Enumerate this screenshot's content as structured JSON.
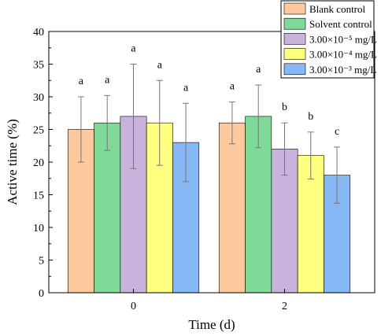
{
  "chart_data": {
    "type": "bar",
    "xlabel": "Time (d)",
    "ylabel": "Active time (%)",
    "ylim": [
      0,
      40
    ],
    "yticks": [
      0,
      5,
      10,
      15,
      20,
      25,
      30,
      35,
      40
    ],
    "categories": [
      "0",
      "2"
    ],
    "legend_position": "top-right",
    "series": [
      {
        "name": "Blank control",
        "values": [
          25,
          26
        ],
        "errors": [
          5.0,
          3.2
        ],
        "labels": [
          "a",
          "a"
        ],
        "color": "#FFC89E"
      },
      {
        "name": "Solvent control",
        "values": [
          26,
          27
        ],
        "errors": [
          4.2,
          4.8
        ],
        "labels": [
          "a",
          "a"
        ],
        "color": "#7FDA9A"
      },
      {
        "name": "3.00×10⁻⁵ mg/L",
        "values": [
          27,
          22
        ],
        "errors": [
          8.0,
          4.0
        ],
        "labels": [
          "a",
          "b"
        ],
        "color": "#C9B3DC"
      },
      {
        "name": "3.00×10⁻⁴ mg/L",
        "values": [
          26,
          21
        ],
        "errors": [
          6.5,
          3.6
        ],
        "labels": [
          "a",
          "b"
        ],
        "color": "#FFFF80"
      },
      {
        "name": "3.00×10⁻³ mg/L",
        "values": [
          23,
          18
        ],
        "errors": [
          6.0,
          4.3
        ],
        "labels": [
          "a",
          "c"
        ],
        "color": "#86B8F6"
      }
    ]
  }
}
